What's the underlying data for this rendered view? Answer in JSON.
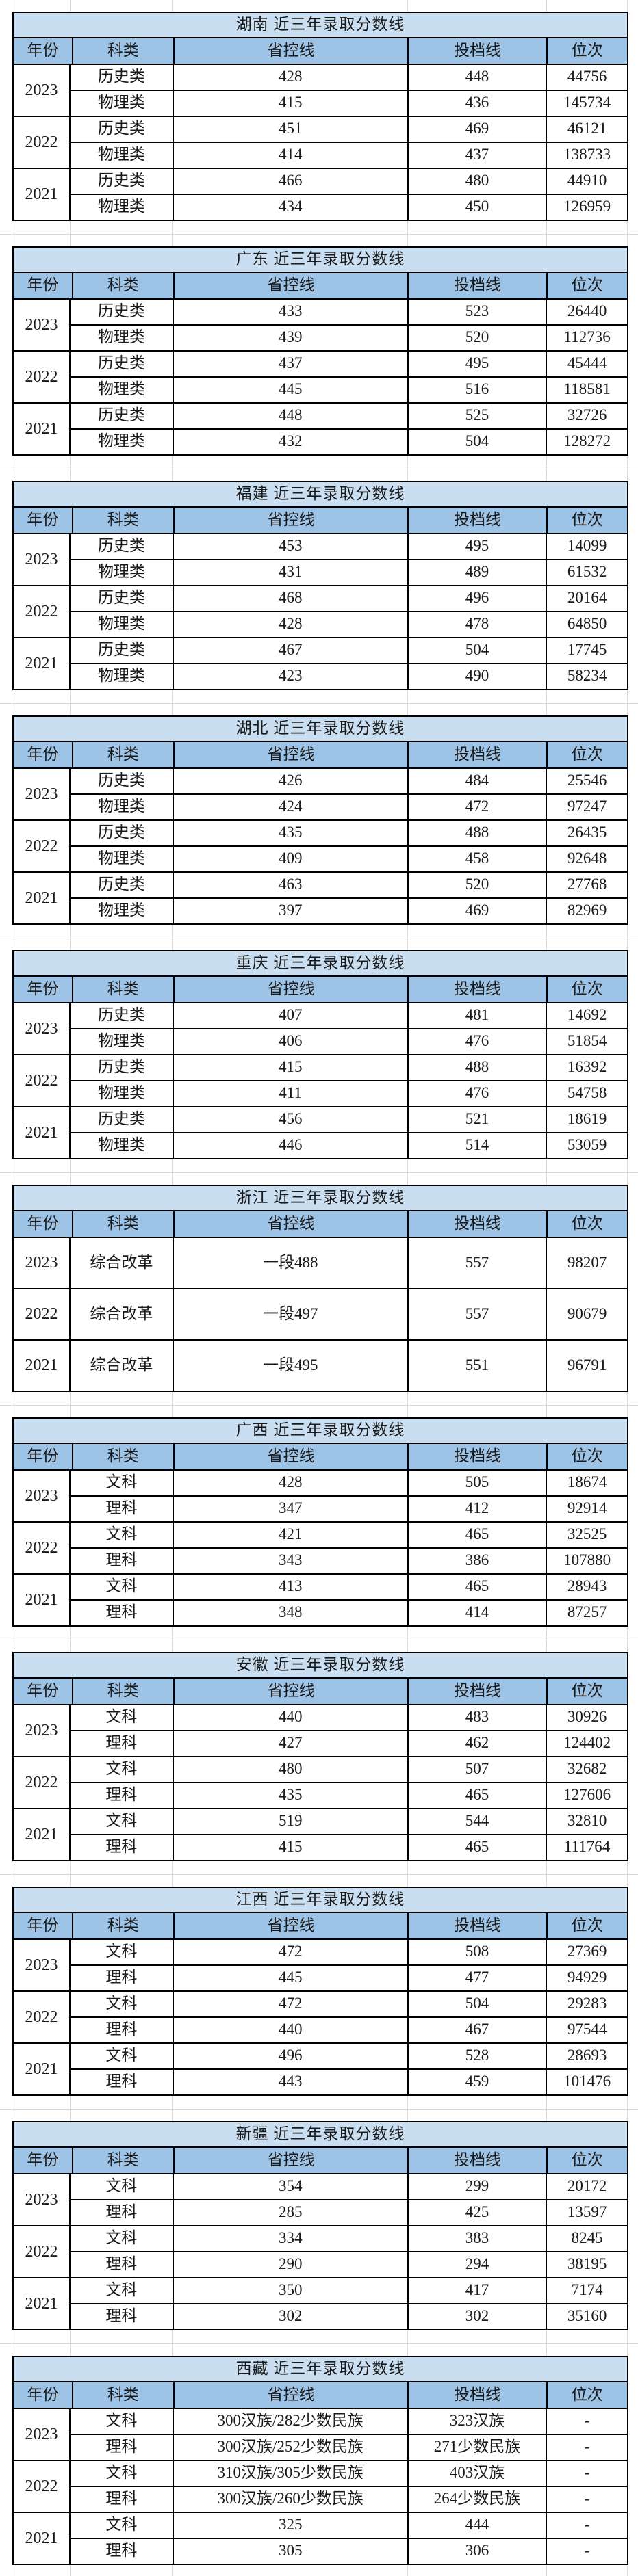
{
  "columns": [
    "年份",
    "科类",
    "省控线",
    "投档线",
    "位次"
  ],
  "colors": {
    "title_bg": "#c9def1",
    "header_bg": "#9dc3e6",
    "border": "#000000",
    "gridline": "#d9d9d9"
  },
  "tables": [
    {
      "title": "湖南 近三年录取分数线",
      "years": [
        {
          "year": "2023",
          "rows": [
            [
              "历史类",
              "428",
              "448",
              "44756"
            ],
            [
              "物理类",
              "415",
              "436",
              "145734"
            ]
          ]
        },
        {
          "year": "2022",
          "rows": [
            [
              "历史类",
              "451",
              "469",
              "46121"
            ],
            [
              "物理类",
              "414",
              "437",
              "138733"
            ]
          ]
        },
        {
          "year": "2021",
          "rows": [
            [
              "历史类",
              "466",
              "480",
              "44910"
            ],
            [
              "物理类",
              "434",
              "450",
              "126959"
            ]
          ]
        }
      ]
    },
    {
      "title": "广东 近三年录取分数线",
      "years": [
        {
          "year": "2023",
          "rows": [
            [
              "历史类",
              "433",
              "523",
              "26440"
            ],
            [
              "物理类",
              "439",
              "520",
              "112736"
            ]
          ]
        },
        {
          "year": "2022",
          "rows": [
            [
              "历史类",
              "437",
              "495",
              "45444"
            ],
            [
              "物理类",
              "445",
              "516",
              "118581"
            ]
          ]
        },
        {
          "year": "2021",
          "rows": [
            [
              "历史类",
              "448",
              "525",
              "32726"
            ],
            [
              "物理类",
              "432",
              "504",
              "128272"
            ]
          ]
        }
      ]
    },
    {
      "title": "福建 近三年录取分数线",
      "years": [
        {
          "year": "2023",
          "rows": [
            [
              "历史类",
              "453",
              "495",
              "14099"
            ],
            [
              "物理类",
              "431",
              "489",
              "61532"
            ]
          ]
        },
        {
          "year": "2022",
          "rows": [
            [
              "历史类",
              "468",
              "496",
              "20164"
            ],
            [
              "物理类",
              "428",
              "478",
              "64850"
            ]
          ]
        },
        {
          "year": "2021",
          "rows": [
            [
              "历史类",
              "467",
              "504",
              "17745"
            ],
            [
              "物理类",
              "423",
              "490",
              "58234"
            ]
          ]
        }
      ]
    },
    {
      "title": "湖北 近三年录取分数线",
      "years": [
        {
          "year": "2023",
          "rows": [
            [
              "历史类",
              "426",
              "484",
              "25546"
            ],
            [
              "物理类",
              "424",
              "472",
              "97247"
            ]
          ]
        },
        {
          "year": "2022",
          "rows": [
            [
              "历史类",
              "435",
              "488",
              "26435"
            ],
            [
              "物理类",
              "409",
              "458",
              "92648"
            ]
          ]
        },
        {
          "year": "2021",
          "rows": [
            [
              "历史类",
              "463",
              "520",
              "27768"
            ],
            [
              "物理类",
              "397",
              "469",
              "82969"
            ]
          ]
        }
      ]
    },
    {
      "title": "重庆 近三年录取分数线",
      "years": [
        {
          "year": "2023",
          "rows": [
            [
              "历史类",
              "407",
              "481",
              "14692"
            ],
            [
              "物理类",
              "406",
              "476",
              "51854"
            ]
          ]
        },
        {
          "year": "2022",
          "rows": [
            [
              "历史类",
              "415",
              "488",
              "16392"
            ],
            [
              "物理类",
              "411",
              "476",
              "54758"
            ]
          ]
        },
        {
          "year": "2021",
          "rows": [
            [
              "历史类",
              "456",
              "521",
              "18619"
            ],
            [
              "物理类",
              "446",
              "514",
              "53059"
            ]
          ]
        }
      ]
    },
    {
      "title": "浙江 近三年录取分数线",
      "years": [
        {
          "year": "2023",
          "rows": [
            [
              "综合改革",
              "一段488",
              "557",
              "98207"
            ]
          ]
        },
        {
          "year": "2022",
          "rows": [
            [
              "综合改革",
              "一段497",
              "557",
              "90679"
            ]
          ]
        },
        {
          "year": "2021",
          "rows": [
            [
              "综合改革",
              "一段495",
              "551",
              "96791"
            ]
          ]
        }
      ]
    },
    {
      "title": "广西 近三年录取分数线",
      "years": [
        {
          "year": "2023",
          "rows": [
            [
              "文科",
              "428",
              "505",
              "18674"
            ],
            [
              "理科",
              "347",
              "412",
              "92914"
            ]
          ]
        },
        {
          "year": "2022",
          "rows": [
            [
              "文科",
              "421",
              "465",
              "32525"
            ],
            [
              "理科",
              "343",
              "386",
              "107880"
            ]
          ]
        },
        {
          "year": "2021",
          "rows": [
            [
              "文科",
              "413",
              "465",
              "28943"
            ],
            [
              "理科",
              "348",
              "414",
              "87257"
            ]
          ]
        }
      ]
    },
    {
      "title": "安徽 近三年录取分数线",
      "years": [
        {
          "year": "2023",
          "rows": [
            [
              "文科",
              "440",
              "483",
              "30926"
            ],
            [
              "理科",
              "427",
              "462",
              "124402"
            ]
          ]
        },
        {
          "year": "2022",
          "rows": [
            [
              "文科",
              "480",
              "507",
              "32682"
            ],
            [
              "理科",
              "435",
              "465",
              "127606"
            ]
          ]
        },
        {
          "year": "2021",
          "rows": [
            [
              "文科",
              "519",
              "544",
              "32810"
            ],
            [
              "理科",
              "415",
              "465",
              "111764"
            ]
          ]
        }
      ]
    },
    {
      "title": "江西 近三年录取分数线",
      "years": [
        {
          "year": "2023",
          "rows": [
            [
              "文科",
              "472",
              "508",
              "27369"
            ],
            [
              "理科",
              "445",
              "477",
              "94929"
            ]
          ]
        },
        {
          "year": "2022",
          "rows": [
            [
              "文科",
              "472",
              "504",
              "29283"
            ],
            [
              "理科",
              "440",
              "467",
              "97544"
            ]
          ]
        },
        {
          "year": "2021",
          "rows": [
            [
              "文科",
              "496",
              "528",
              "28693"
            ],
            [
              "理科",
              "443",
              "459",
              "101476"
            ]
          ]
        }
      ]
    },
    {
      "title": "新疆 近三年录取分数线",
      "years": [
        {
          "year": "2023",
          "rows": [
            [
              "文科",
              "354",
              "299",
              "20172"
            ],
            [
              "理科",
              "285",
              "425",
              "13597"
            ]
          ]
        },
        {
          "year": "2022",
          "rows": [
            [
              "文科",
              "334",
              "383",
              "8245"
            ],
            [
              "理科",
              "290",
              "294",
              "38195"
            ]
          ]
        },
        {
          "year": "2021",
          "rows": [
            [
              "文科",
              "350",
              "417",
              "7174"
            ],
            [
              "理科",
              "302",
              "302",
              "35160"
            ]
          ]
        }
      ]
    },
    {
      "title": "西藏 近三年录取分数线",
      "years": [
        {
          "year": "2023",
          "rows": [
            [
              "文科",
              "300汉族/282少数民族",
              "323汉族",
              "-"
            ],
            [
              "理科",
              "300汉族/252少数民族",
              "271少数民族",
              "-"
            ]
          ]
        },
        {
          "year": "2022",
          "rows": [
            [
              "文科",
              "310汉族/305少数民族",
              "403汉族",
              "-"
            ],
            [
              "理科",
              "300汉族/260少数民族",
              "264少数民族",
              "-"
            ]
          ]
        },
        {
          "year": "2021",
          "rows": [
            [
              "文科",
              "325",
              "444",
              "-"
            ],
            [
              "理科",
              "305",
              "306",
              "-"
            ]
          ]
        }
      ]
    }
  ]
}
